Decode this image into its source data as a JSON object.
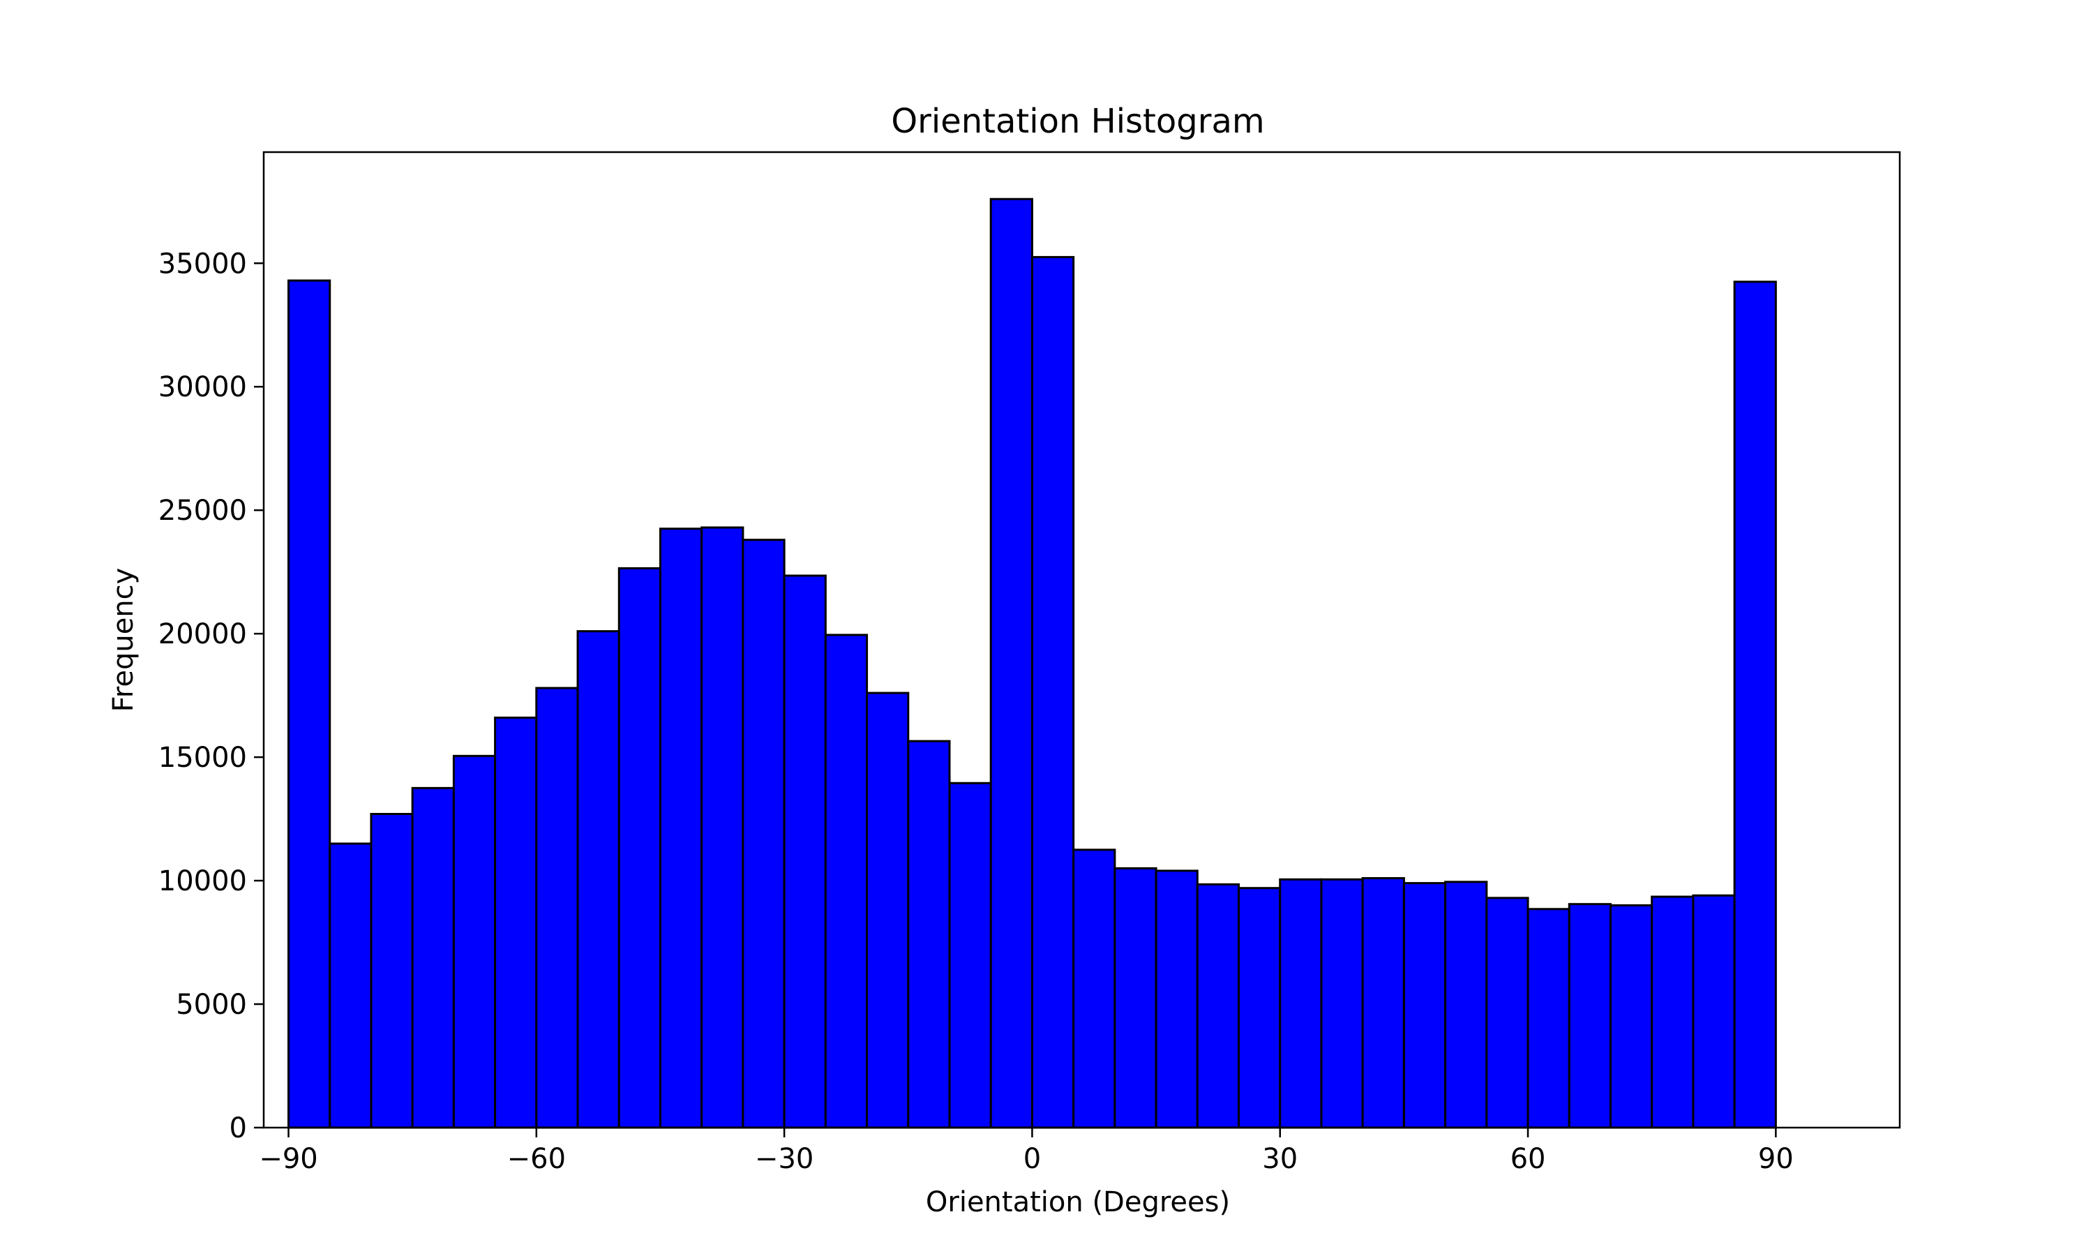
{
  "chart_data": {
    "type": "bar",
    "title": "Orientation Histogram",
    "xlabel": "Orientation (Degrees)",
    "ylabel": "Frequency",
    "xlim": [
      -93,
      105
    ],
    "ylim": [
      0,
      39500
    ],
    "bin_width": 5,
    "bin_start": -90,
    "values": [
      34300,
      11500,
      12700,
      13750,
      15050,
      16600,
      17800,
      20100,
      22650,
      24250,
      24300,
      23800,
      22350,
      19950,
      17600,
      15650,
      13950,
      37600,
      35250,
      11250,
      10500,
      10400,
      9850,
      9700,
      10050,
      10050,
      10100,
      9900,
      9950,
      9300,
      8850,
      9050,
      9000,
      9350,
      9400,
      34250
    ],
    "xticks": [
      -90,
      -60,
      -30,
      0,
      30,
      60,
      90
    ],
    "xtick_labels": [
      "−90",
      "−60",
      "−30",
      "0",
      "30",
      "60",
      "90"
    ],
    "yticks": [
      0,
      5000,
      10000,
      15000,
      20000,
      25000,
      30000,
      35000
    ],
    "ytick_labels": [
      "0",
      "5000",
      "10000",
      "15000",
      "20000",
      "25000",
      "30000",
      "35000"
    ],
    "bar_color": "#0000ff",
    "edge_color": "#000000",
    "grid": false,
    "legend": false
  }
}
